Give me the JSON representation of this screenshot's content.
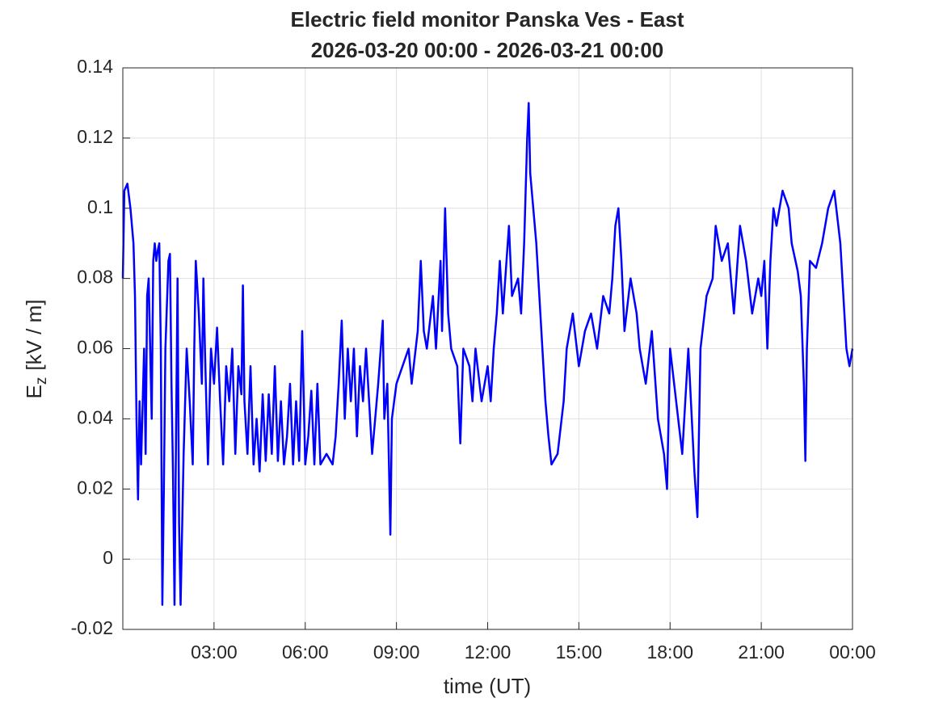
{
  "chart_data": {
    "type": "line",
    "title": [
      "Electric field monitor Panska Ves - East",
      "2026-03-20 00:00 - 2026-03-21 00:00"
    ],
    "xlabel": "time (UT)",
    "ylabel": {
      "symbol": "E",
      "subscript": "z",
      "unit": "[kV / m]"
    },
    "xlim": [
      0,
      24
    ],
    "xticks": [
      {
        "value": 3,
        "label": "03:00"
      },
      {
        "value": 6,
        "label": "06:00"
      },
      {
        "value": 9,
        "label": "09:00"
      },
      {
        "value": 12,
        "label": "12:00"
      },
      {
        "value": 15,
        "label": "15:00"
      },
      {
        "value": 18,
        "label": "18:00"
      },
      {
        "value": 21,
        "label": "21:00"
      },
      {
        "value": 24,
        "label": "00:00"
      }
    ],
    "ylim": [
      -0.02,
      0.14
    ],
    "yticks": [
      -0.02,
      0,
      0.02,
      0.04,
      0.06,
      0.08,
      0.1,
      0.12,
      0.14
    ],
    "grid": true,
    "color": "#0000ff",
    "x": [
      0.0,
      0.05,
      0.15,
      0.25,
      0.35,
      0.4,
      0.45,
      0.5,
      0.55,
      0.6,
      0.7,
      0.75,
      0.8,
      0.85,
      0.9,
      0.95,
      1.0,
      1.05,
      1.1,
      1.15,
      1.2,
      1.25,
      1.3,
      1.35,
      1.4,
      1.5,
      1.55,
      1.6,
      1.65,
      1.7,
      1.75,
      1.8,
      1.85,
      1.9,
      2.0,
      2.1,
      2.2,
      2.3,
      2.35,
      2.4,
      2.5,
      2.6,
      2.65,
      2.7,
      2.8,
      2.9,
      3.0,
      3.1,
      3.2,
      3.3,
      3.4,
      3.5,
      3.6,
      3.7,
      3.8,
      3.9,
      3.95,
      4.0,
      4.1,
      4.2,
      4.3,
      4.4,
      4.5,
      4.6,
      4.7,
      4.8,
      4.9,
      5.0,
      5.1,
      5.2,
      5.3,
      5.4,
      5.5,
      5.6,
      5.7,
      5.8,
      5.9,
      6.0,
      6.1,
      6.2,
      6.3,
      6.4,
      6.5,
      6.7,
      6.9,
      7.0,
      7.1,
      7.2,
      7.3,
      7.4,
      7.5,
      7.6,
      7.7,
      7.8,
      7.9,
      8.0,
      8.2,
      8.4,
      8.55,
      8.6,
      8.7,
      8.8,
      8.85,
      9.0,
      9.2,
      9.4,
      9.5,
      9.7,
      9.8,
      9.9,
      10.0,
      10.2,
      10.3,
      10.45,
      10.5,
      10.6,
      10.7,
      10.8,
      11.0,
      11.1,
      11.2,
      11.4,
      11.5,
      11.6,
      11.8,
      12.0,
      12.1,
      12.2,
      12.3,
      12.4,
      12.5,
      12.7,
      12.8,
      13.0,
      13.1,
      13.2,
      13.3,
      13.35,
      13.4,
      13.5,
      13.6,
      13.7,
      13.8,
      13.9,
      14.0,
      14.1,
      14.3,
      14.5,
      14.6,
      14.8,
      15.0,
      15.2,
      15.4,
      15.6,
      15.8,
      16.0,
      16.1,
      16.2,
      16.3,
      16.4,
      16.5,
      16.7,
      16.9,
      17.0,
      17.2,
      17.4,
      17.6,
      17.8,
      17.9,
      18.0,
      18.2,
      18.4,
      18.6,
      18.8,
      18.9,
      19.0,
      19.2,
      19.4,
      19.5,
      19.7,
      19.9,
      20.1,
      20.3,
      20.5,
      20.7,
      20.9,
      21.0,
      21.1,
      21.2,
      21.3,
      21.4,
      21.5,
      21.7,
      21.9,
      22.0,
      22.2,
      22.3,
      22.4,
      22.45,
      22.5,
      22.6,
      22.8,
      23.0,
      23.2,
      23.4,
      23.6,
      23.8,
      23.9,
      24.0
    ],
    "values": [
      0.08,
      0.105,
      0.107,
      0.1,
      0.09,
      0.075,
      0.04,
      0.017,
      0.045,
      0.027,
      0.06,
      0.03,
      0.075,
      0.08,
      0.06,
      0.04,
      0.085,
      0.09,
      0.085,
      0.088,
      0.09,
      0.06,
      -0.013,
      0.02,
      0.06,
      0.085,
      0.087,
      0.05,
      0.025,
      -0.013,
      0.035,
      0.08,
      0.01,
      -0.013,
      0.03,
      0.06,
      0.045,
      0.027,
      0.06,
      0.085,
      0.07,
      0.05,
      0.08,
      0.06,
      0.027,
      0.06,
      0.05,
      0.066,
      0.045,
      0.027,
      0.055,
      0.045,
      0.06,
      0.03,
      0.055,
      0.047,
      0.078,
      0.045,
      0.03,
      0.055,
      0.027,
      0.04,
      0.025,
      0.047,
      0.028,
      0.047,
      0.03,
      0.055,
      0.028,
      0.045,
      0.027,
      0.035,
      0.05,
      0.027,
      0.045,
      0.028,
      0.065,
      0.027,
      0.035,
      0.048,
      0.027,
      0.05,
      0.027,
      0.03,
      0.027,
      0.035,
      0.05,
      0.068,
      0.04,
      0.06,
      0.045,
      0.06,
      0.035,
      0.055,
      0.045,
      0.06,
      0.03,
      0.05,
      0.068,
      0.04,
      0.05,
      0.007,
      0.04,
      0.05,
      0.055,
      0.06,
      0.05,
      0.065,
      0.085,
      0.065,
      0.06,
      0.075,
      0.06,
      0.085,
      0.065,
      0.1,
      0.07,
      0.06,
      0.055,
      0.033,
      0.06,
      0.055,
      0.045,
      0.06,
      0.045,
      0.055,
      0.045,
      0.06,
      0.07,
      0.085,
      0.07,
      0.095,
      0.075,
      0.08,
      0.07,
      0.09,
      0.12,
      0.13,
      0.11,
      0.1,
      0.09,
      0.075,
      0.06,
      0.045,
      0.035,
      0.027,
      0.03,
      0.045,
      0.06,
      0.07,
      0.055,
      0.065,
      0.07,
      0.06,
      0.075,
      0.07,
      0.08,
      0.095,
      0.1,
      0.085,
      0.065,
      0.08,
      0.07,
      0.06,
      0.05,
      0.065,
      0.04,
      0.03,
      0.02,
      0.06,
      0.045,
      0.03,
      0.06,
      0.025,
      0.012,
      0.06,
      0.075,
      0.08,
      0.095,
      0.085,
      0.09,
      0.07,
      0.095,
      0.085,
      0.07,
      0.08,
      0.075,
      0.085,
      0.06,
      0.085,
      0.1,
      0.095,
      0.105,
      0.1,
      0.09,
      0.082,
      0.075,
      0.05,
      0.028,
      0.06,
      0.085,
      0.083,
      0.09,
      0.1,
      0.105,
      0.09,
      0.06,
      0.055,
      0.06
    ]
  }
}
